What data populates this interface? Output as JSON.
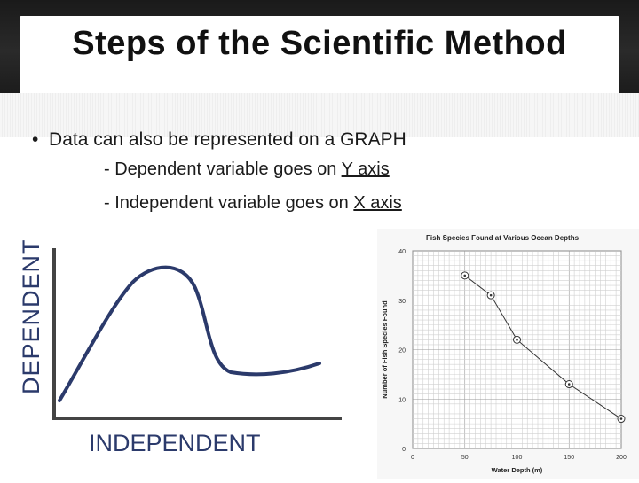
{
  "slide": {
    "title": "Steps of the Scientific Method",
    "bullet_main": "Data can also be represented on a GRAPH",
    "sub1_prefix": "- Dependent variable goes on ",
    "sub1_link": "Y axis",
    "sub2_prefix": "- Independent variable goes on ",
    "sub2_link": "X axis",
    "dependent_label": "DEPENDENT",
    "independent_label": "INDEPENDENT",
    "accent_color": "#2b3a6b"
  },
  "chart_data": {
    "type": "line",
    "title": "Fish Species Found at Various Ocean Depths",
    "xlabel": "Water Depth (m)",
    "ylabel": "Number of Fish Species Found",
    "xlim": [
      0,
      200
    ],
    "ylim": [
      0,
      40
    ],
    "x_ticks": [
      "0",
      "50",
      "100",
      "150",
      "200"
    ],
    "y_ticks": [
      "0",
      "10",
      "20",
      "30",
      "40"
    ],
    "grid": true,
    "x": [
      50,
      75,
      100,
      150,
      200
    ],
    "y": [
      35,
      31,
      22,
      13,
      6
    ]
  }
}
